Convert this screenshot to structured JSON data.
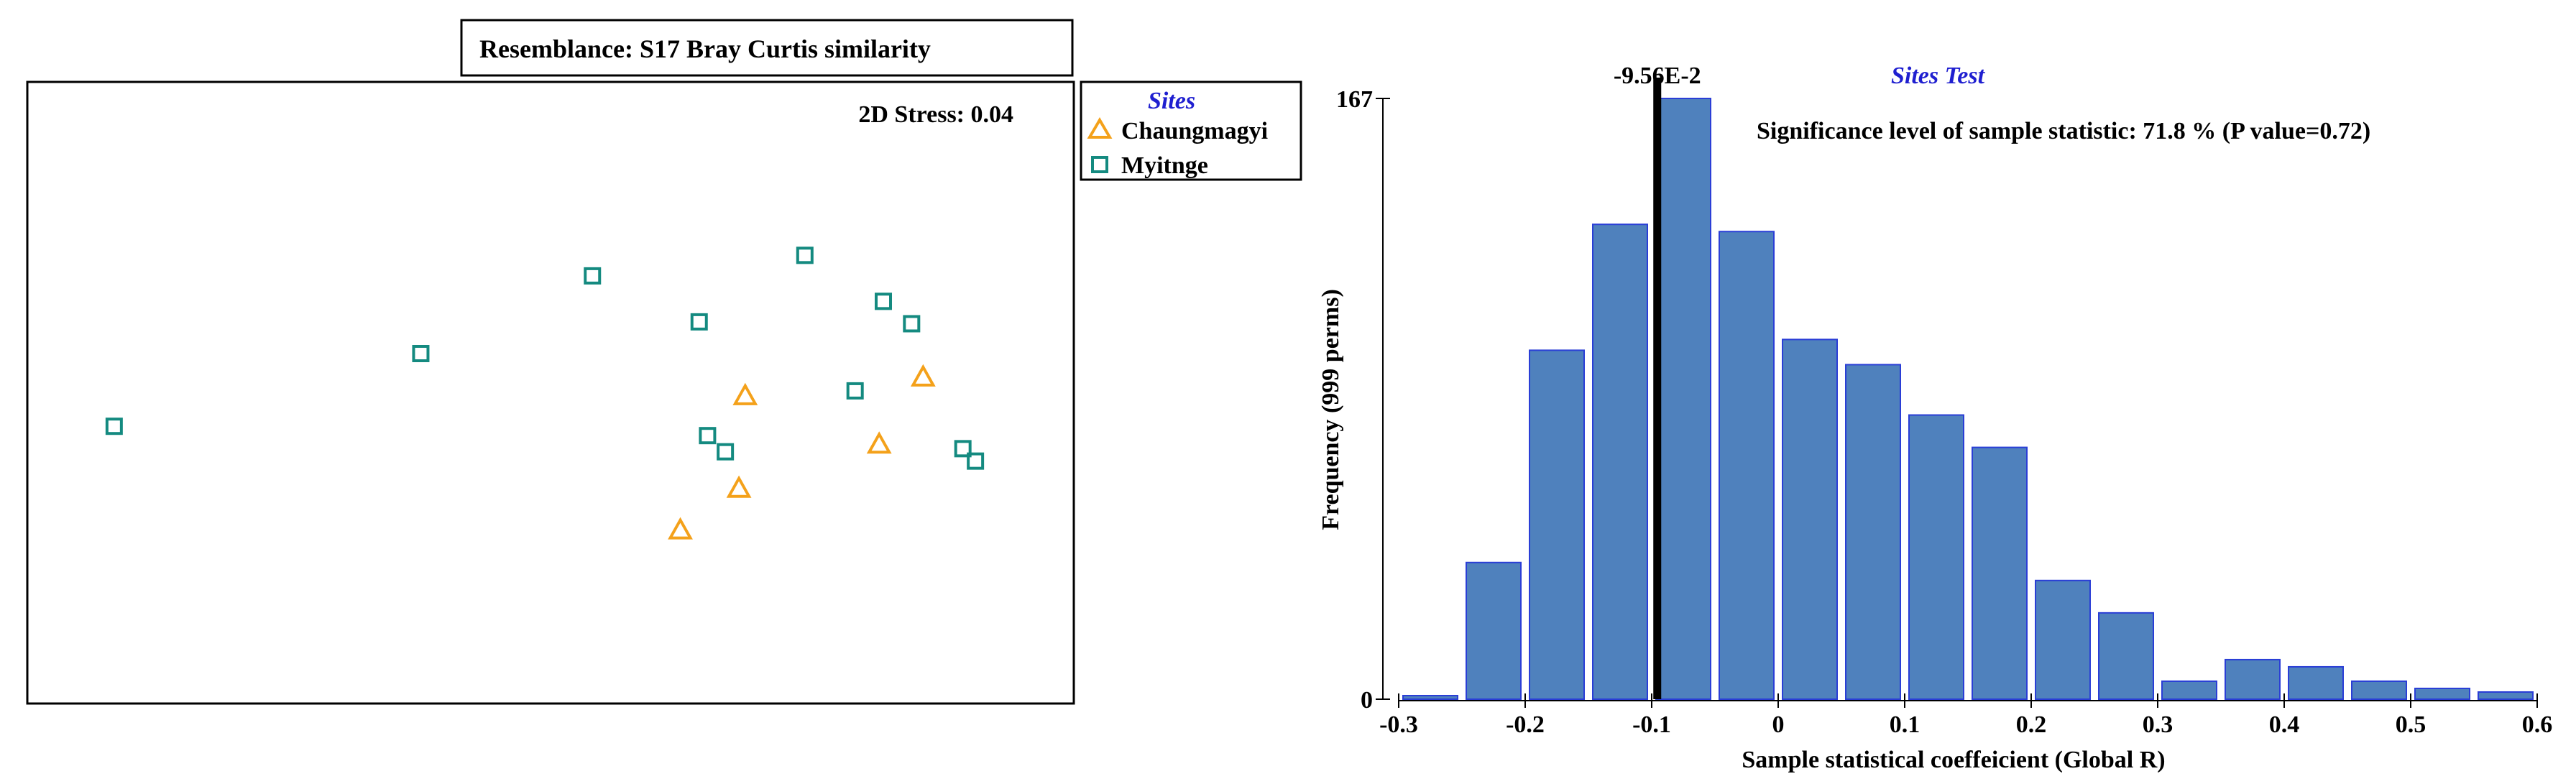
{
  "colors": {
    "chaungmagyi": "#F4A11A",
    "myitnge": "#148A80",
    "bar_fill": "#4F81BD",
    "bar_stroke": "#2A3ED6",
    "accent_blue": "#1F1FD0"
  },
  "chart_data": [
    {
      "type": "scatter",
      "title": "Resemblance: S17 Bray Curtis similarity",
      "stress": "2D Stress: 0.04",
      "legend": {
        "title": "Sites",
        "entries": [
          {
            "label": "Chaungmagyi",
            "marker": "triangle",
            "color": "#F4A11A"
          },
          {
            "label": "Myitnge",
            "marker": "square",
            "color": "#148A80"
          }
        ],
        "placement": "outside-top-right"
      },
      "xlim": [
        0,
        1
      ],
      "ylim": [
        0,
        1
      ],
      "series": [
        {
          "name": "Chaungmagyi",
          "points": [
            {
              "x": 0.686,
              "y": 0.495
            },
            {
              "x": 0.856,
              "y": 0.525
            },
            {
              "x": 0.814,
              "y": 0.417
            },
            {
              "x": 0.68,
              "y": 0.346
            },
            {
              "x": 0.624,
              "y": 0.279
            }
          ]
        },
        {
          "name": "Myitnge",
          "points": [
            {
              "x": 0.083,
              "y": 0.446
            },
            {
              "x": 0.376,
              "y": 0.563
            },
            {
              "x": 0.54,
              "y": 0.688
            },
            {
              "x": 0.642,
              "y": 0.614
            },
            {
              "x": 0.743,
              "y": 0.721
            },
            {
              "x": 0.818,
              "y": 0.647
            },
            {
              "x": 0.845,
              "y": 0.611
            },
            {
              "x": 0.791,
              "y": 0.503
            },
            {
              "x": 0.65,
              "y": 0.431
            },
            {
              "x": 0.667,
              "y": 0.405
            },
            {
              "x": 0.894,
              "y": 0.41
            },
            {
              "x": 0.906,
              "y": 0.39
            }
          ]
        }
      ]
    },
    {
      "type": "bar",
      "title": "Sites Test",
      "annotation": "Significance level of sample statistic: 71.8 %   (P value=0.72)",
      "marker_label": "-9.56E-2",
      "marker_x": -0.0956,
      "xlabel": "Sample statistical coeffeicient (Global R)",
      "ylabel": "Frequency (999 perms)",
      "xlim": [
        -0.3,
        0.6
      ],
      "ylim": [
        0,
        167
      ],
      "x_ticks": [
        "-0.3",
        "-0.2",
        "-0.1",
        "0",
        "0.1",
        "0.2",
        "0.3",
        "0.4",
        "0.5",
        "0.6"
      ],
      "y_ticks": [
        "0",
        "167"
      ],
      "bin_width": 0.05,
      "bins": [
        {
          "x": -0.275,
          "value": 1
        },
        {
          "x": -0.225,
          "value": 38
        },
        {
          "x": -0.175,
          "value": 97
        },
        {
          "x": -0.125,
          "value": 132
        },
        {
          "x": -0.075,
          "value": 167
        },
        {
          "x": -0.025,
          "value": 130
        },
        {
          "x": 0.025,
          "value": 100
        },
        {
          "x": 0.075,
          "value": 93
        },
        {
          "x": 0.125,
          "value": 79
        },
        {
          "x": 0.175,
          "value": 70
        },
        {
          "x": 0.225,
          "value": 33
        },
        {
          "x": 0.275,
          "value": 24
        },
        {
          "x": 0.325,
          "value": 5
        },
        {
          "x": 0.375,
          "value": 11
        },
        {
          "x": 0.425,
          "value": 9
        },
        {
          "x": 0.475,
          "value": 5
        },
        {
          "x": 0.525,
          "value": 3
        },
        {
          "x": 0.575,
          "value": 2
        }
      ]
    }
  ]
}
